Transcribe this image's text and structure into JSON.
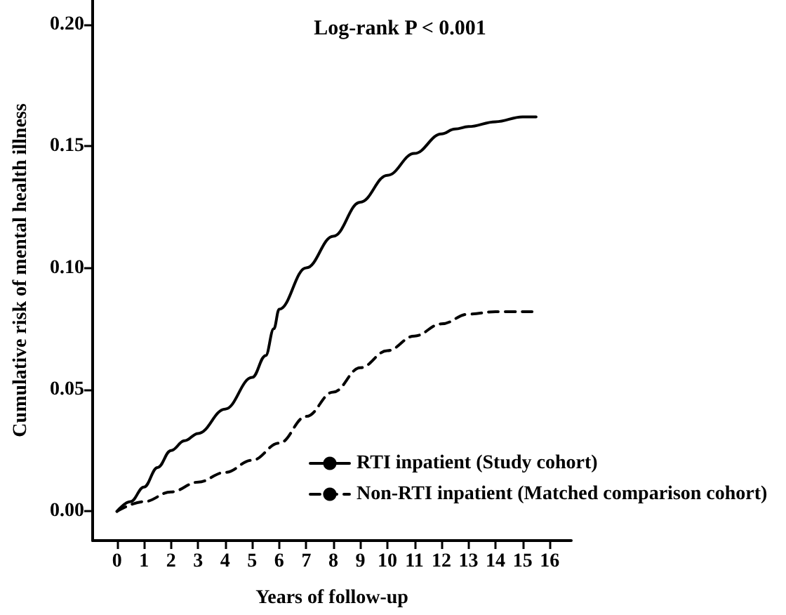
{
  "chart_data": {
    "type": "line",
    "title": "Log-rank P < 0.001",
    "xlabel": "Years of follow-up",
    "ylabel": "Cumulative risk of mental health illness",
    "xlim": [
      -0.9,
      16.8
    ],
    "xticks": [
      0,
      1,
      2,
      3,
      4,
      5,
      6,
      7,
      8,
      9,
      10,
      11,
      12,
      13,
      14,
      15,
      16
    ],
    "ylim": [
      -0.012,
      0.21
    ],
    "yticks": [
      {
        "value": 0,
        "label": "0.00"
      },
      {
        "value": 0.05,
        "label": "0.05"
      },
      {
        "value": 0.1,
        "label": "0.10"
      },
      {
        "value": 0.15,
        "label": "0.15"
      },
      {
        "value": 0.2,
        "label": "0.20"
      }
    ],
    "grid": false,
    "legend": "bottom right",
    "marker": "none",
    "series": [
      {
        "name": "RTI inpatient (Study cohort)",
        "color": "#000000",
        "line_style": "solid",
        "x": [
          0,
          0.5,
          1,
          1.5,
          2,
          2.5,
          3,
          4,
          5,
          5.5,
          5.8,
          6,
          7,
          8,
          9,
          10,
          11,
          12,
          12.5,
          13,
          14,
          15,
          15.5
        ],
        "values": [
          0,
          0.004,
          0.01,
          0.018,
          0.025,
          0.029,
          0.032,
          0.042,
          0.055,
          0.064,
          0.075,
          0.083,
          0.1,
          0.113,
          0.127,
          0.138,
          0.147,
          0.155,
          0.157,
          0.158,
          0.16,
          0.162,
          0.162
        ]
      },
      {
        "name": "Non-RTI inpatient (Matched comparison cohort)",
        "color": "#000000",
        "line_style": "dashed",
        "x": [
          0,
          1,
          2,
          3,
          4,
          5,
          6,
          7,
          8,
          9,
          10,
          11,
          12,
          13,
          14,
          15.5
        ],
        "values": [
          0,
          0.004,
          0.008,
          0.012,
          0.016,
          0.021,
          0.028,
          0.039,
          0.049,
          0.059,
          0.066,
          0.072,
          0.077,
          0.081,
          0.082,
          0.082
        ]
      }
    ]
  }
}
